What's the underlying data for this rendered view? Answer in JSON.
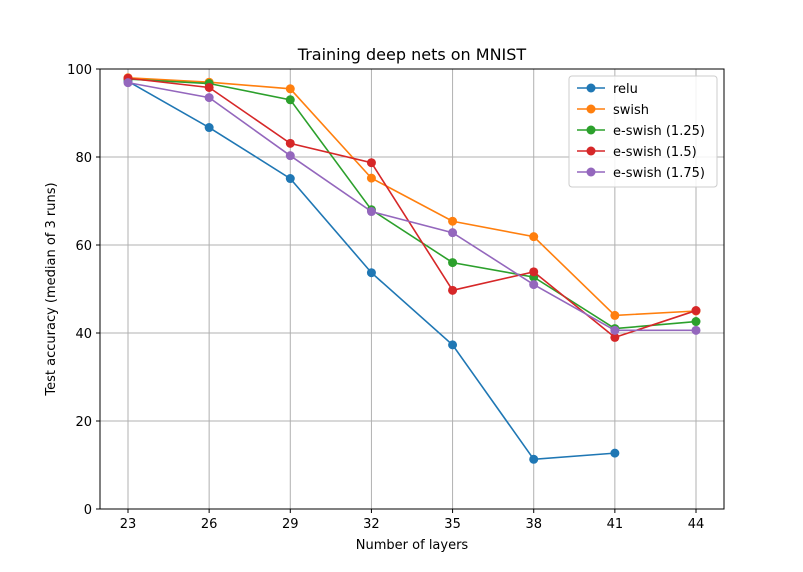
{
  "chart_data": {
    "type": "line",
    "title": "Training deep nets on MNIST",
    "xlabel": "Number of layers",
    "ylabel": "Test accuracy (median of 3 runs)",
    "x": [
      23,
      26,
      29,
      32,
      35,
      38,
      41,
      44
    ],
    "x_tick_labels": [
      "23",
      "26",
      "29",
      "32",
      "35",
      "38",
      "41",
      "44"
    ],
    "ylim": [
      0,
      100
    ],
    "y_ticks": [
      0,
      20,
      40,
      60,
      80,
      100
    ],
    "y_tick_labels": [
      "0",
      "20",
      "40",
      "60",
      "80",
      "100"
    ],
    "grid": true,
    "legend_position": "top-right",
    "series": [
      {
        "name": "relu",
        "color": "#1f77b4",
        "values": [
          97.2,
          86.7,
          75.1,
          53.7,
          37.3,
          11.3,
          12.7,
          null
        ]
      },
      {
        "name": "swish",
        "color": "#ff7f0e",
        "values": [
          98.0,
          97.0,
          95.5,
          75.2,
          65.4,
          61.9,
          44.0,
          45.0
        ]
      },
      {
        "name": "e-swish (1.25)",
        "color": "#2ca02c",
        "values": [
          97.7,
          96.7,
          93.0,
          68.0,
          56.0,
          52.7,
          41.0,
          42.6
        ]
      },
      {
        "name": "e-swish (1.5)",
        "color": "#d62728",
        "values": [
          97.9,
          95.8,
          83.1,
          78.7,
          49.7,
          53.9,
          39.0,
          45.1
        ]
      },
      {
        "name": "e-swish (1.75)",
        "color": "#9467bd",
        "values": [
          96.9,
          93.5,
          80.3,
          67.6,
          62.8,
          51.0,
          40.6,
          40.6
        ]
      }
    ]
  }
}
